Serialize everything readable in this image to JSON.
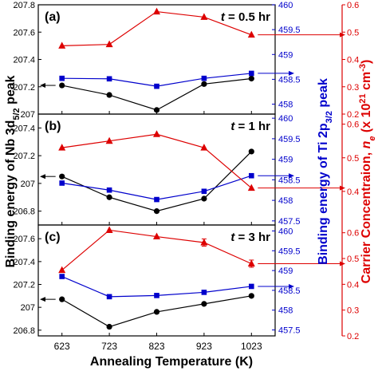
{
  "chart_data": [
    {
      "type": "line",
      "panel_label": "(a)",
      "annotation": "t = 0.5 hr",
      "annotation_parts": {
        "var": "t",
        "rest": " = 0.5 hr"
      },
      "x": [
        623,
        723,
        823,
        923,
        1023
      ],
      "series": [
        {
          "axis": "nb",
          "color": "#000000",
          "marker": "circle",
          "values": [
            207.21,
            207.14,
            207.03,
            207.22,
            207.26
          ]
        },
        {
          "axis": "ti",
          "color": "#0000cc",
          "marker": "square",
          "values": [
            458.52,
            458.51,
            458.36,
            458.52,
            458.62
          ]
        },
        {
          "axis": "carrier",
          "color": "#dd0000",
          "marker": "triangle",
          "values": [
            0.45,
            0.455,
            0.575,
            0.555,
            0.49
          ]
        }
      ],
      "nb_axis": {
        "range": [
          207.0,
          207.8
        ],
        "ticks": [
          207,
          207.2,
          207.4,
          207.6,
          207.8
        ],
        "tick_labels": [
          "207",
          "207.2",
          "207.4",
          "207.6",
          "207.8"
        ]
      },
      "ti_axis": {
        "range": [
          457.8,
          460.0
        ],
        "ticks": [
          458,
          458.5,
          459,
          459.5,
          460
        ],
        "tick_labels": [
          "458",
          "458.5",
          "459",
          "459.5",
          "460"
        ]
      },
      "carrier_axis": {
        "range": [
          0.2,
          0.6
        ],
        "ticks": [
          0.2,
          0.3,
          0.4,
          0.5,
          0.6
        ],
        "tick_labels": [
          "0.2",
          "0.3",
          "0.4",
          "0.5",
          "0.6"
        ]
      }
    },
    {
      "type": "line",
      "panel_label": "(b)",
      "annotation": "t = 1 hr",
      "annotation_parts": {
        "var": "t",
        "rest": " = 1 hr"
      },
      "x": [
        623,
        723,
        823,
        923,
        1023
      ],
      "series": [
        {
          "axis": "nb",
          "color": "#000000",
          "marker": "circle",
          "values": [
            207.05,
            206.9,
            206.8,
            206.89,
            207.23
          ]
        },
        {
          "axis": "ti",
          "color": "#0000cc",
          "marker": "square",
          "values": [
            458.42,
            458.25,
            458.02,
            458.22,
            458.6
          ]
        },
        {
          "axis": "carrier",
          "color": "#dd0000",
          "marker": "triangle",
          "values": [
            0.53,
            0.55,
            0.57,
            0.53,
            0.41
          ]
        }
      ],
      "nb_axis": {
        "range": [
          206.7,
          207.5
        ],
        "ticks": [
          206.8,
          207,
          207.2,
          207.4
        ],
        "tick_labels": [
          "206.8",
          "207",
          "207.2",
          "207.4"
        ]
      },
      "ti_axis": {
        "range": [
          457.4,
          460.1
        ],
        "ticks": [
          457.5,
          458,
          458.5,
          459,
          459.5,
          460
        ],
        "tick_labels": [
          "457.5",
          "458",
          "458.5",
          "459",
          "459.5",
          "460"
        ]
      },
      "carrier_axis": {
        "range": [
          0.3,
          0.63
        ],
        "ticks": [
          0.4,
          0.5,
          0.6
        ],
        "tick_labels": [
          "0.4",
          "0.5",
          "0.6"
        ]
      }
    },
    {
      "type": "line",
      "panel_label": "(c)",
      "annotation": "t = 3 hr",
      "annotation_parts": {
        "var": "t",
        "rest": " = 3 hr"
      },
      "x": [
        623,
        723,
        823,
        923,
        1023
      ],
      "series": [
        {
          "axis": "nb",
          "color": "#000000",
          "marker": "circle",
          "values": [
            207.07,
            206.83,
            206.96,
            207.03,
            207.1
          ]
        },
        {
          "axis": "ti",
          "color": "#0000cc",
          "marker": "square",
          "values": [
            458.85,
            458.34,
            458.37,
            458.45,
            458.6
          ]
        },
        {
          "axis": "carrier",
          "color": "#dd0000",
          "marker": "triangle",
          "values": [
            0.455,
            0.61,
            0.585,
            0.562,
            0.48
          ],
          "error": [
            0,
            0,
            0,
            0.014,
            0.014
          ]
        }
      ],
      "nb_axis": {
        "range": [
          206.75,
          207.72
        ],
        "ticks": [
          206.8,
          207,
          207.2,
          207.4,
          207.6
        ],
        "tick_labels": [
          "206.8",
          "207",
          "207.2",
          "207.4",
          "207.6"
        ]
      },
      "ti_axis": {
        "range": [
          457.35,
          460.15
        ],
        "ticks": [
          457.5,
          458,
          458.5,
          459,
          459.5,
          460
        ],
        "tick_labels": [
          "457.5",
          "458",
          "458.5",
          "459",
          "459.5",
          "460"
        ]
      },
      "carrier_axis": {
        "range": [
          0.2,
          0.63
        ],
        "ticks": [
          0.2,
          0.3,
          0.4,
          0.5,
          0.6
        ],
        "tick_labels": [
          "0.2",
          "0.3",
          "0.4",
          "0.5",
          "0.6"
        ]
      }
    }
  ],
  "x_axis": {
    "label": "Annealing Temperature (K)",
    "ticks": [
      623,
      723,
      823,
      923,
      1023
    ],
    "tick_labels": [
      "623",
      "723",
      "823",
      "923",
      "1023"
    ]
  },
  "labels": {
    "nb_ylabel": {
      "before": "Binding energy of Nb 3d",
      "sub": "5/2",
      "after": " peak"
    },
    "ti_ylabel": {
      "before": "Binding energy of Ti 2p",
      "sub": "3/2",
      "after": " peak"
    },
    "carrier_ylabel": {
      "before": "Carrier Concentraion, ",
      "var": "n",
      "var_sub": "e",
      "mid": " (x 10",
      "sup": "21",
      "after": " cm",
      "sup2": "-3",
      "end": ")"
    }
  },
  "colors": {
    "nb": "#000000",
    "ti": "#0000cc",
    "carrier": "#dd0000"
  }
}
